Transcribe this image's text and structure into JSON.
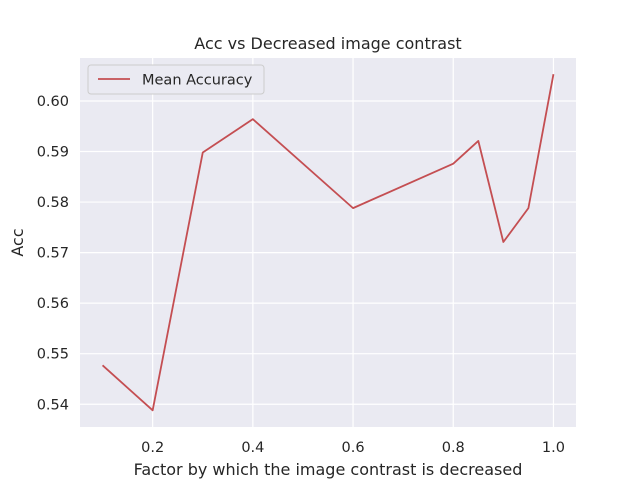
{
  "chart_data": {
    "type": "line",
    "title": "Acc vs Decreased image contrast",
    "xlabel": "Factor by which the image contrast is decreased",
    "ylabel": "Acc",
    "xlim": [
      0.055,
      1.045
    ],
    "ylim": [
      0.5355,
      0.6085
    ],
    "xticks": [
      0.2,
      0.4,
      0.6,
      0.8,
      1.0
    ],
    "xtick_labels": [
      "0.2",
      "0.4",
      "0.6",
      "0.8",
      "1.0"
    ],
    "yticks": [
      0.54,
      0.55,
      0.56,
      0.57,
      0.58,
      0.59,
      0.6
    ],
    "ytick_labels": [
      "0.54",
      "0.55",
      "0.56",
      "0.57",
      "0.58",
      "0.59",
      "0.60"
    ],
    "grid": true,
    "legend_position": "top-left",
    "background_color": "#EAEAF2",
    "series": [
      {
        "name": "Mean Accuracy",
        "color": "#C44E52",
        "x": [
          0.1,
          0.2,
          0.3,
          0.4,
          0.6,
          0.8,
          0.85,
          0.9,
          0.95,
          1.0
        ],
        "y": [
          0.5477,
          0.5388,
          0.5898,
          0.5964,
          0.5788,
          0.5876,
          0.5921,
          0.5721,
          0.5788,
          0.6053
        ]
      }
    ]
  }
}
